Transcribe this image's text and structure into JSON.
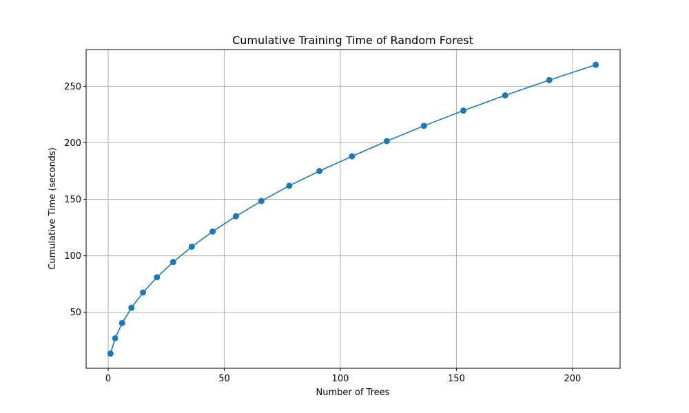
{
  "chart_data": {
    "type": "line",
    "title": "Cumulative Training Time of Random Forest",
    "xlabel": "Number of Trees",
    "ylabel": "Cumulative Time (seconds)",
    "xlim": [
      -9.5,
      220.5
    ],
    "ylim": [
      0.5,
      282.5
    ],
    "xticks": [
      0,
      50,
      100,
      150,
      200
    ],
    "yticks": [
      50,
      100,
      150,
      200,
      250
    ],
    "grid": true,
    "marker": "circle",
    "color": "#1f77b4",
    "series": [
      {
        "x": [
          1,
          3,
          6,
          10,
          15,
          21,
          28,
          36,
          45,
          55,
          66,
          78,
          91,
          105,
          120,
          136,
          153,
          171,
          190,
          210
        ],
        "y": [
          13.5,
          27,
          40.5,
          54,
          67.5,
          81,
          94.5,
          108,
          121.5,
          135,
          148.5,
          162,
          175,
          188,
          201.5,
          215,
          228.5,
          242,
          255.5,
          269
        ]
      }
    ]
  }
}
